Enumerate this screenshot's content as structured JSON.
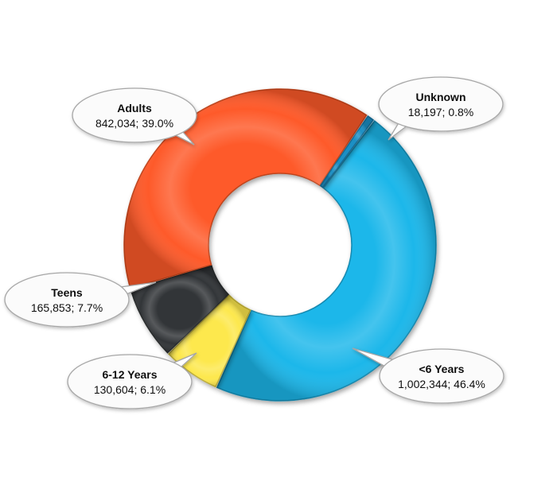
{
  "chart_data": {
    "type": "pie",
    "variant": "donut",
    "title": "",
    "legend": "none",
    "slices": [
      {
        "label": "<6 Years",
        "value": 1002344,
        "value_text": "1,002,344",
        "percent": 46.4,
        "percent_text": "46.4%",
        "color": "#1ab7ea"
      },
      {
        "label": "6-12 Years",
        "value": 130604,
        "value_text": "130,604",
        "percent": 6.1,
        "percent_text": "6.1%",
        "color": "#fde84d"
      },
      {
        "label": "Teens",
        "value": 165853,
        "value_text": "165,853",
        "percent": 7.7,
        "percent_text": "7.7%",
        "color": "#333638"
      },
      {
        "label": "Adults",
        "value": 842034,
        "value_text": "842,034",
        "percent": 39.0,
        "percent_text": "39.0%",
        "color": "#fe5a29"
      },
      {
        "label": "Unknown",
        "value": 18197,
        "value_text": "18,197",
        "percent": 0.8,
        "percent_text": "0.8%",
        "color": "#1e8fc4"
      }
    ]
  }
}
